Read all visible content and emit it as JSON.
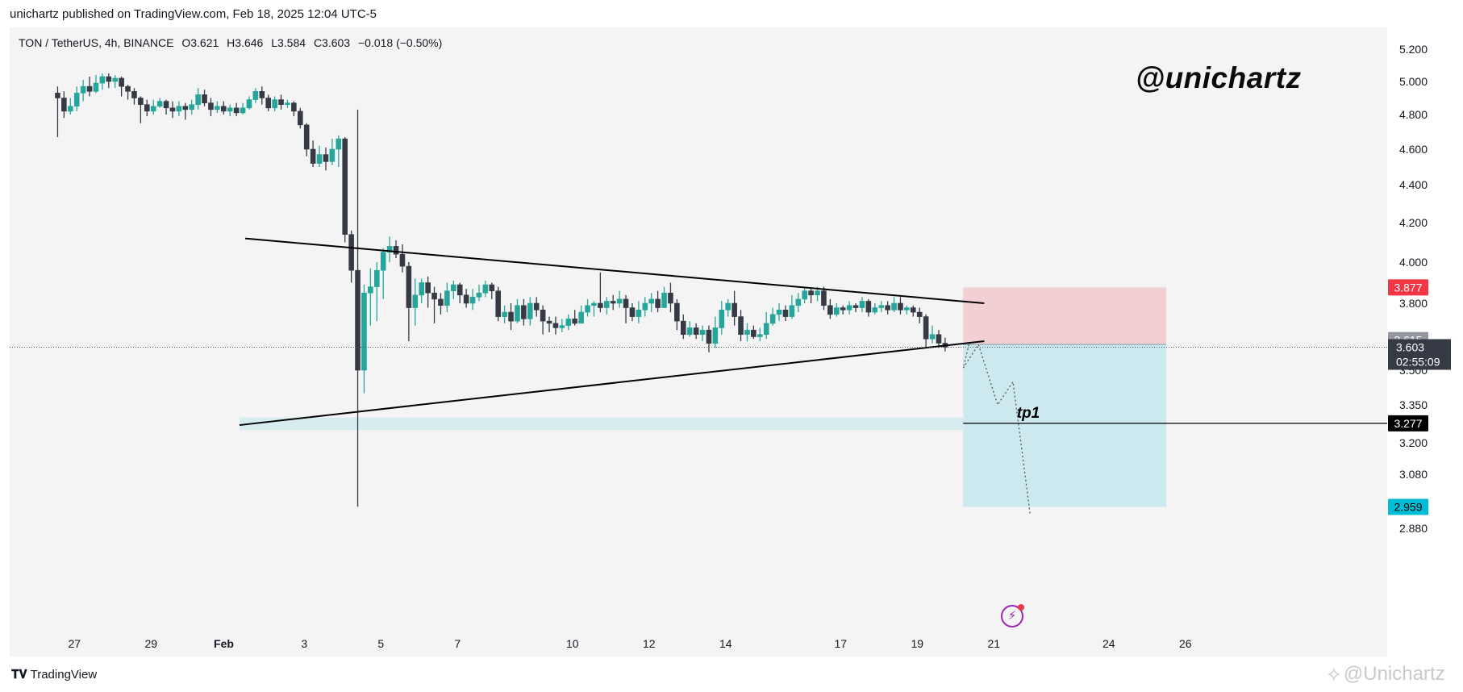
{
  "header": {
    "published": "unichartz published on TradingView.com, Feb 18, 2025 12:04 UTC-5"
  },
  "legend": {
    "symbol": "TON / TetherUS, 4h, BINANCE",
    "open": "O3.621",
    "high": "H3.646",
    "low": "L3.584",
    "close": "C3.603",
    "change": "−0.018 (−0.50%)"
  },
  "watermark": "@unichartz",
  "footer": {
    "brand": "TradingView",
    "corner_watermark": "@Unichartz"
  },
  "colors": {
    "up": "#26a69a",
    "down": "#363a45",
    "stop_zone": "#f2cfd3",
    "target_zone": "#cbe9ef",
    "stop_tag": "#f23645",
    "target_tag": "#00bcd4",
    "line": "#000000"
  },
  "chart_data": {
    "type": "candlestick",
    "symbol": "TON / TetherUS",
    "interval": "4h",
    "exchange": "BINANCE",
    "ylim": [
      2.78,
      5.28
    ],
    "y_ticks": [
      "5.200",
      "5.000",
      "4.800",
      "4.600",
      "4.400",
      "4.200",
      "4.000",
      "3.800",
      "3.500",
      "3.350",
      "3.200",
      "3.080",
      "2.880"
    ],
    "x_ticks": [
      "27",
      "29",
      "Feb",
      "3",
      "5",
      "7",
      "10",
      "12",
      "14",
      "17",
      "19",
      "21",
      "24",
      "26"
    ],
    "last_price": "3.603",
    "countdown": "02:55:09",
    "position": {
      "entry": 3.615,
      "stop": 3.877,
      "target": 2.959,
      "entry_label": "3.615",
      "stop_label": "3.877",
      "target_label": "2.959"
    },
    "tp1": {
      "label": "tp1",
      "price": 3.277,
      "price_label": "3.277"
    },
    "triangle": {
      "upper": [
        [
          "Feb 1",
          4.12
        ],
        [
          "Feb 20",
          3.8
        ]
      ],
      "lower": [
        [
          "Feb 1",
          3.27
        ],
        [
          "Feb 20",
          3.63
        ]
      ]
    },
    "candles": [
      [
        4.93,
        4.9,
        4.97,
        4.67
      ],
      [
        4.9,
        4.82,
        4.94,
        4.78
      ],
      [
        4.82,
        4.85,
        4.9,
        4.8
      ],
      [
        4.85,
        4.93,
        4.97,
        4.82
      ],
      [
        4.93,
        4.97,
        5.01,
        4.88
      ],
      [
        4.97,
        4.94,
        5.03,
        4.91
      ],
      [
        4.94,
        4.99,
        5.04,
        4.93
      ],
      [
        4.99,
        5.03,
        5.05,
        4.95
      ],
      [
        5.03,
        5.0,
        5.05,
        4.96
      ],
      [
        5.0,
        5.02,
        5.04,
        4.96
      ],
      [
        5.02,
        4.97,
        5.03,
        4.91
      ],
      [
        4.97,
        4.94,
        4.98,
        4.89
      ],
      [
        4.94,
        4.9,
        4.96,
        4.86
      ],
      [
        4.9,
        4.86,
        4.91,
        4.75
      ],
      [
        4.86,
        4.82,
        4.89,
        4.79
      ],
      [
        4.82,
        4.85,
        4.89,
        4.8
      ],
      [
        4.85,
        4.88,
        4.9,
        4.84
      ],
      [
        4.88,
        4.84,
        4.89,
        4.8
      ],
      [
        4.84,
        4.82,
        4.88,
        4.78
      ],
      [
        4.82,
        4.85,
        4.88,
        4.79
      ],
      [
        4.85,
        4.83,
        4.87,
        4.77
      ],
      [
        4.83,
        4.86,
        4.89,
        4.8
      ],
      [
        4.86,
        4.92,
        4.96,
        4.83
      ],
      [
        4.92,
        4.87,
        4.95,
        4.85
      ],
      [
        4.87,
        4.83,
        4.9,
        4.79
      ],
      [
        4.83,
        4.85,
        4.88,
        4.81
      ],
      [
        4.85,
        4.82,
        4.88,
        4.8
      ],
      [
        4.82,
        4.84,
        4.86,
        4.79
      ],
      [
        4.84,
        4.81,
        4.87,
        4.79
      ],
      [
        4.81,
        4.84,
        4.87,
        4.8
      ],
      [
        4.84,
        4.89,
        4.91,
        4.83
      ],
      [
        4.89,
        4.94,
        4.96,
        4.87
      ],
      [
        4.94,
        4.9,
        4.97,
        4.86
      ],
      [
        4.9,
        4.84,
        4.92,
        4.82
      ],
      [
        4.84,
        4.89,
        4.91,
        4.82
      ],
      [
        4.89,
        4.86,
        4.92,
        4.83
      ],
      [
        4.86,
        4.87,
        4.89,
        4.84
      ],
      [
        4.87,
        4.82,
        4.88,
        4.79
      ],
      [
        4.82,
        4.74,
        4.84,
        4.72
      ],
      [
        4.74,
        4.6,
        4.75,
        4.56
      ],
      [
        4.6,
        4.52,
        4.65,
        4.5
      ],
      [
        4.52,
        4.57,
        4.62,
        4.5
      ],
      [
        4.57,
        4.53,
        4.61,
        4.48
      ],
      [
        4.53,
        4.6,
        4.66,
        4.51
      ],
      [
        4.6,
        4.66,
        4.68,
        4.5
      ],
      [
        4.66,
        4.14,
        4.67,
        4.1
      ],
      [
        4.14,
        3.96,
        4.16,
        3.9
      ],
      [
        3.96,
        3.5,
        4.83,
        2.96
      ],
      [
        3.5,
        3.85,
        3.89,
        3.4
      ],
      [
        3.85,
        3.88,
        3.97,
        3.7
      ],
      [
        3.88,
        3.96,
        4.0,
        3.72
      ],
      [
        3.96,
        4.05,
        4.07,
        3.82
      ],
      [
        4.05,
        4.08,
        4.13,
        4.0
      ],
      [
        4.08,
        4.04,
        4.11,
        4.02
      ],
      [
        4.04,
        3.98,
        4.09,
        3.95
      ],
      [
        3.98,
        3.78,
        4.0,
        3.63
      ],
      [
        3.78,
        3.84,
        3.92,
        3.7
      ],
      [
        3.84,
        3.9,
        3.92,
        3.8
      ],
      [
        3.9,
        3.85,
        3.93,
        3.78
      ],
      [
        3.85,
        3.82,
        3.88,
        3.71
      ],
      [
        3.82,
        3.79,
        3.85,
        3.75
      ],
      [
        3.79,
        3.86,
        3.9,
        3.76
      ],
      [
        3.86,
        3.89,
        3.91,
        3.82
      ],
      [
        3.89,
        3.84,
        3.9,
        3.8
      ],
      [
        3.84,
        3.8,
        3.87,
        3.78
      ],
      [
        3.8,
        3.83,
        3.87,
        3.77
      ],
      [
        3.83,
        3.85,
        3.89,
        3.81
      ],
      [
        3.85,
        3.89,
        3.91,
        3.83
      ],
      [
        3.89,
        3.86,
        3.9,
        3.82
      ],
      [
        3.86,
        3.74,
        3.88,
        3.72
      ],
      [
        3.74,
        3.76,
        3.79,
        3.71
      ],
      [
        3.76,
        3.72,
        3.8,
        3.68
      ],
      [
        3.72,
        3.79,
        3.82,
        3.71
      ],
      [
        3.79,
        3.73,
        3.82,
        3.7
      ],
      [
        3.73,
        3.8,
        3.83,
        3.7
      ],
      [
        3.8,
        3.77,
        3.83,
        3.74
      ],
      [
        3.77,
        3.72,
        3.79,
        3.66
      ],
      [
        3.72,
        3.71,
        3.74,
        3.67
      ],
      [
        3.71,
        3.69,
        3.74,
        3.66
      ],
      [
        3.69,
        3.7,
        3.73,
        3.67
      ],
      [
        3.7,
        3.73,
        3.75,
        3.68
      ],
      [
        3.73,
        3.71,
        3.77,
        3.7
      ],
      [
        3.71,
        3.76,
        3.79,
        3.72
      ],
      [
        3.76,
        3.79,
        3.82,
        3.74
      ],
      [
        3.79,
        3.8,
        3.81,
        3.74
      ],
      [
        3.8,
        3.78,
        3.95,
        3.76
      ],
      [
        3.78,
        3.81,
        3.83,
        3.75
      ],
      [
        3.81,
        3.8,
        3.84,
        3.77
      ],
      [
        3.8,
        3.82,
        3.86,
        3.78
      ],
      [
        3.82,
        3.78,
        3.84,
        3.71
      ],
      [
        3.78,
        3.74,
        3.8,
        3.72
      ],
      [
        3.74,
        3.77,
        3.81,
        3.71
      ],
      [
        3.77,
        3.8,
        3.83,
        3.74
      ],
      [
        3.8,
        3.82,
        3.85,
        3.76
      ],
      [
        3.82,
        3.78,
        3.86,
        3.76
      ],
      [
        3.78,
        3.85,
        3.88,
        3.8
      ],
      [
        3.85,
        3.8,
        3.9,
        3.76
      ],
      [
        3.8,
        3.72,
        3.82,
        3.68
      ],
      [
        3.72,
        3.66,
        3.75,
        3.64
      ],
      [
        3.66,
        3.69,
        3.72,
        3.65
      ],
      [
        3.69,
        3.66,
        3.71,
        3.64
      ],
      [
        3.66,
        3.68,
        3.7,
        3.63
      ],
      [
        3.68,
        3.62,
        3.7,
        3.58
      ],
      [
        3.62,
        3.69,
        3.74,
        3.6
      ],
      [
        3.69,
        3.77,
        3.81,
        3.66
      ],
      [
        3.77,
        3.8,
        3.82,
        3.74
      ],
      [
        3.8,
        3.74,
        3.86,
        3.7
      ],
      [
        3.74,
        3.66,
        3.77,
        3.63
      ],
      [
        3.66,
        3.68,
        3.71,
        3.63
      ],
      [
        3.68,
        3.65,
        3.7,
        3.64
      ],
      [
        3.65,
        3.66,
        3.69,
        3.63
      ],
      [
        3.66,
        3.71,
        3.76,
        3.64
      ],
      [
        3.71,
        3.75,
        3.78,
        3.7
      ],
      [
        3.75,
        3.77,
        3.8,
        3.72
      ],
      [
        3.77,
        3.74,
        3.79,
        3.72
      ],
      [
        3.74,
        3.79,
        3.84,
        3.73
      ],
      [
        3.79,
        3.82,
        3.85,
        3.76
      ],
      [
        3.82,
        3.86,
        3.88,
        3.8
      ],
      [
        3.86,
        3.84,
        3.87,
        3.8
      ],
      [
        3.84,
        3.86,
        3.88,
        3.81
      ],
      [
        3.86,
        3.79,
        3.88,
        3.77
      ],
      [
        3.79,
        3.75,
        3.82,
        3.73
      ],
      [
        3.75,
        3.78,
        3.8,
        3.74
      ],
      [
        3.78,
        3.77,
        3.79,
        3.75
      ],
      [
        3.77,
        3.79,
        3.81,
        3.75
      ],
      [
        3.79,
        3.78,
        3.8,
        3.76
      ],
      [
        3.78,
        3.81,
        3.83,
        3.76
      ],
      [
        3.81,
        3.76,
        3.82,
        3.74
      ],
      [
        3.76,
        3.78,
        3.8,
        3.75
      ],
      [
        3.78,
        3.79,
        3.81,
        3.76
      ],
      [
        3.79,
        3.77,
        3.81,
        3.75
      ],
      [
        3.77,
        3.8,
        3.83,
        3.76
      ],
      [
        3.8,
        3.77,
        3.83,
        3.75
      ],
      [
        3.77,
        3.78,
        3.79,
        3.75
      ],
      [
        3.78,
        3.76,
        3.79,
        3.74
      ],
      [
        3.76,
        3.74,
        3.78,
        3.71
      ],
      [
        3.74,
        3.64,
        3.75,
        3.6
      ],
      [
        3.64,
        3.66,
        3.7,
        3.62
      ],
      [
        3.66,
        3.621,
        3.68,
        3.6
      ],
      [
        3.621,
        3.603,
        3.646,
        3.584
      ]
    ]
  }
}
